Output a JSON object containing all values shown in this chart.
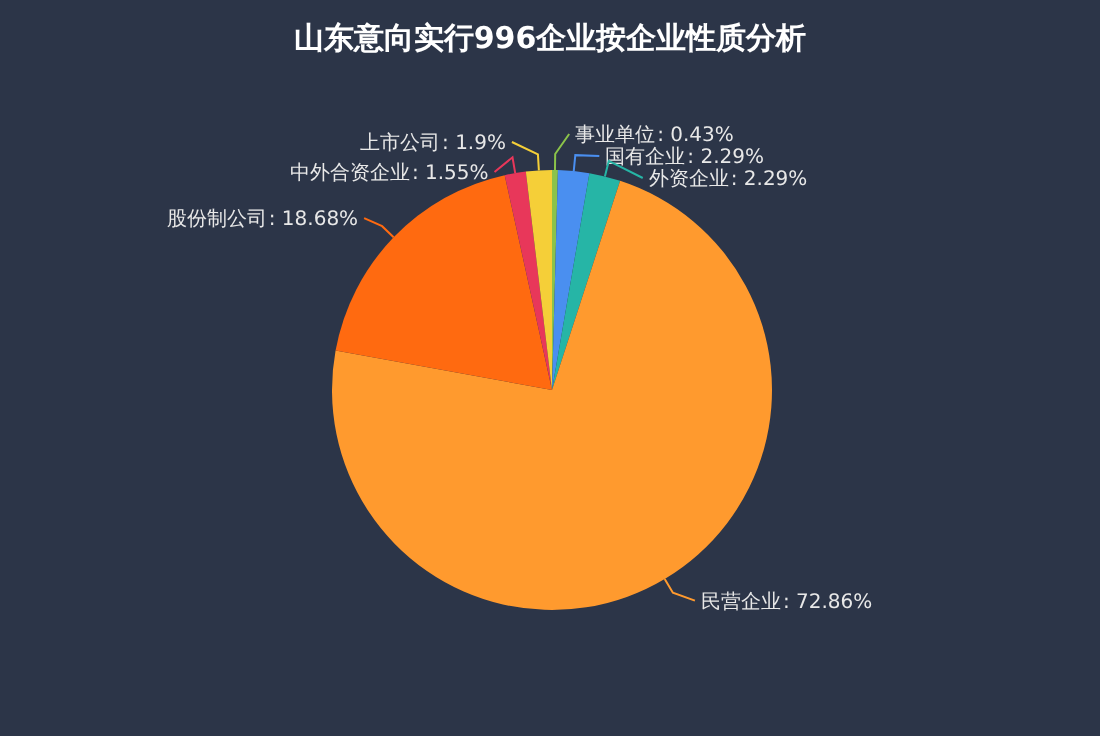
{
  "chart_data": {
    "type": "pie",
    "title": "山东意向实行996企业按企业性质分析",
    "categories": [
      "事业单位",
      "国有企业",
      "外资企业",
      "民营企业",
      "股份制公司",
      "中外合资企业",
      "上市公司"
    ],
    "values": [
      0.43,
      2.29,
      2.29,
      72.86,
      18.68,
      1.55,
      1.9
    ],
    "colors": [
      "#8bc34a",
      "#4a8ff0",
      "#26b5a6",
      "#ff9a2e",
      "#ff6a10",
      "#e8375a",
      "#f5cf38"
    ],
    "value_labels": [
      ": 0.43%",
      ": 2.29%",
      ": 2.29%",
      ": 72.86%",
      ": 18.68%",
      ": 1.55%",
      ": 1.9%"
    ]
  }
}
